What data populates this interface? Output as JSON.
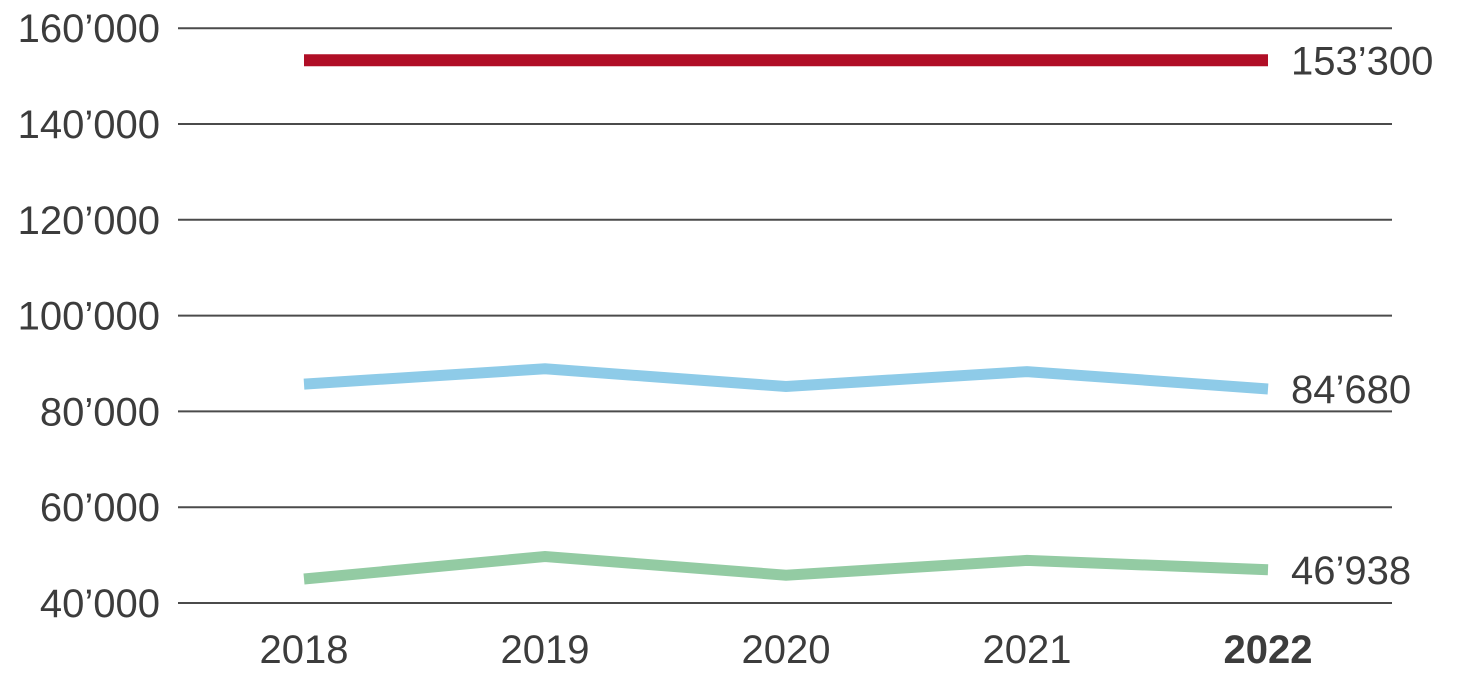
{
  "chart_data": {
    "type": "line",
    "categories": [
      "2018",
      "2019",
      "2020",
      "2021",
      "2022"
    ],
    "highlighted_category": "2022",
    "series": [
      {
        "name": "red-series",
        "color": "#b00e26",
        "stroke_width": 12,
        "values": [
          153300,
          153300,
          153300,
          153300,
          153300
        ],
        "end_label": "153’300"
      },
      {
        "name": "blue-series",
        "color": "#8ecbe8",
        "stroke_width": 11,
        "values": [
          85700,
          88900,
          85200,
          88300,
          84680
        ],
        "end_label": "84’680"
      },
      {
        "name": "green-series",
        "color": "#93cba3",
        "stroke_width": 11,
        "values": [
          45000,
          49700,
          45800,
          48900,
          46938
        ],
        "end_label": "46’938"
      }
    ],
    "yticks": [
      160000,
      140000,
      120000,
      100000,
      80000,
      60000,
      40000
    ],
    "ytick_labels": [
      "160’000",
      "140’000",
      "120’000",
      "100’000",
      "80’000",
      "60’000",
      "40’000"
    ],
    "ylim": [
      33000,
      166000
    ],
    "grid": true,
    "gridline_color": "#4b4b4b",
    "legend": "none",
    "title": "",
    "xlabel": "",
    "ylabel": ""
  },
  "colors": {
    "background": "#ffffff",
    "text": "#3c3c3c",
    "gridline": "#4b4b4b"
  }
}
